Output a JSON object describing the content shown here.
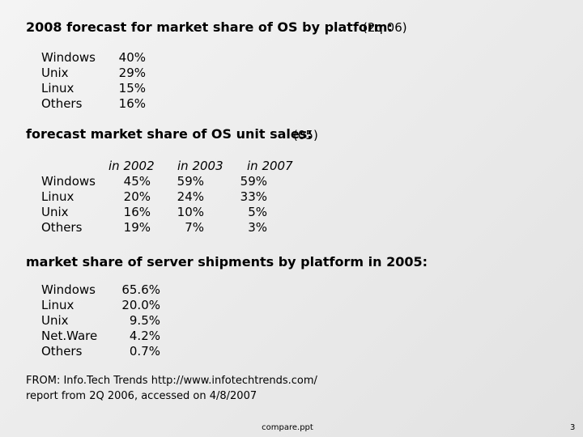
{
  "section1": {
    "title": "2008 forecast for market share of OS by platform:",
    "period": "(2q 06)",
    "rows": [
      {
        "name": "Windows",
        "share": "40%"
      },
      {
        "name": "Unix",
        "share": "29%"
      },
      {
        "name": "Linux",
        "share": "15%"
      },
      {
        "name": "Others",
        "share": "16%"
      }
    ]
  },
  "section2": {
    "title": "forecast market share of OS unit sales:",
    "period": "(05)",
    "columns": [
      "in 2002",
      "in 2003",
      "in 2007"
    ],
    "rows": [
      {
        "name": "Windows",
        "values": [
          "45%",
          "59%",
          "59%"
        ]
      },
      {
        "name": "Linux",
        "values": [
          "20%",
          "24%",
          "33%"
        ]
      },
      {
        "name": "Unix",
        "values": [
          "16%",
          "10%",
          "5%"
        ]
      },
      {
        "name": "Others",
        "values": [
          "19%",
          "7%",
          "3%"
        ]
      }
    ]
  },
  "section3": {
    "title": "market share of server shipments by platform in 2005:",
    "rows": [
      {
        "name": "Windows",
        "share": "65.6%"
      },
      {
        "name": "Linux",
        "share": "20.0%"
      },
      {
        "name": "Unix",
        "share": "9.5%"
      },
      {
        "name": "Net.Ware",
        "share": "4.2%"
      },
      {
        "name": "Others",
        "share": "0.7%"
      }
    ]
  },
  "source": {
    "line1": "FROM: Info.Tech Trends http://www.infotechtrends.com/",
    "line2": "report from 2Q 2006, accessed on 4/8/2007"
  },
  "footer": {
    "filename": "compare.ppt",
    "page_number": "3"
  }
}
